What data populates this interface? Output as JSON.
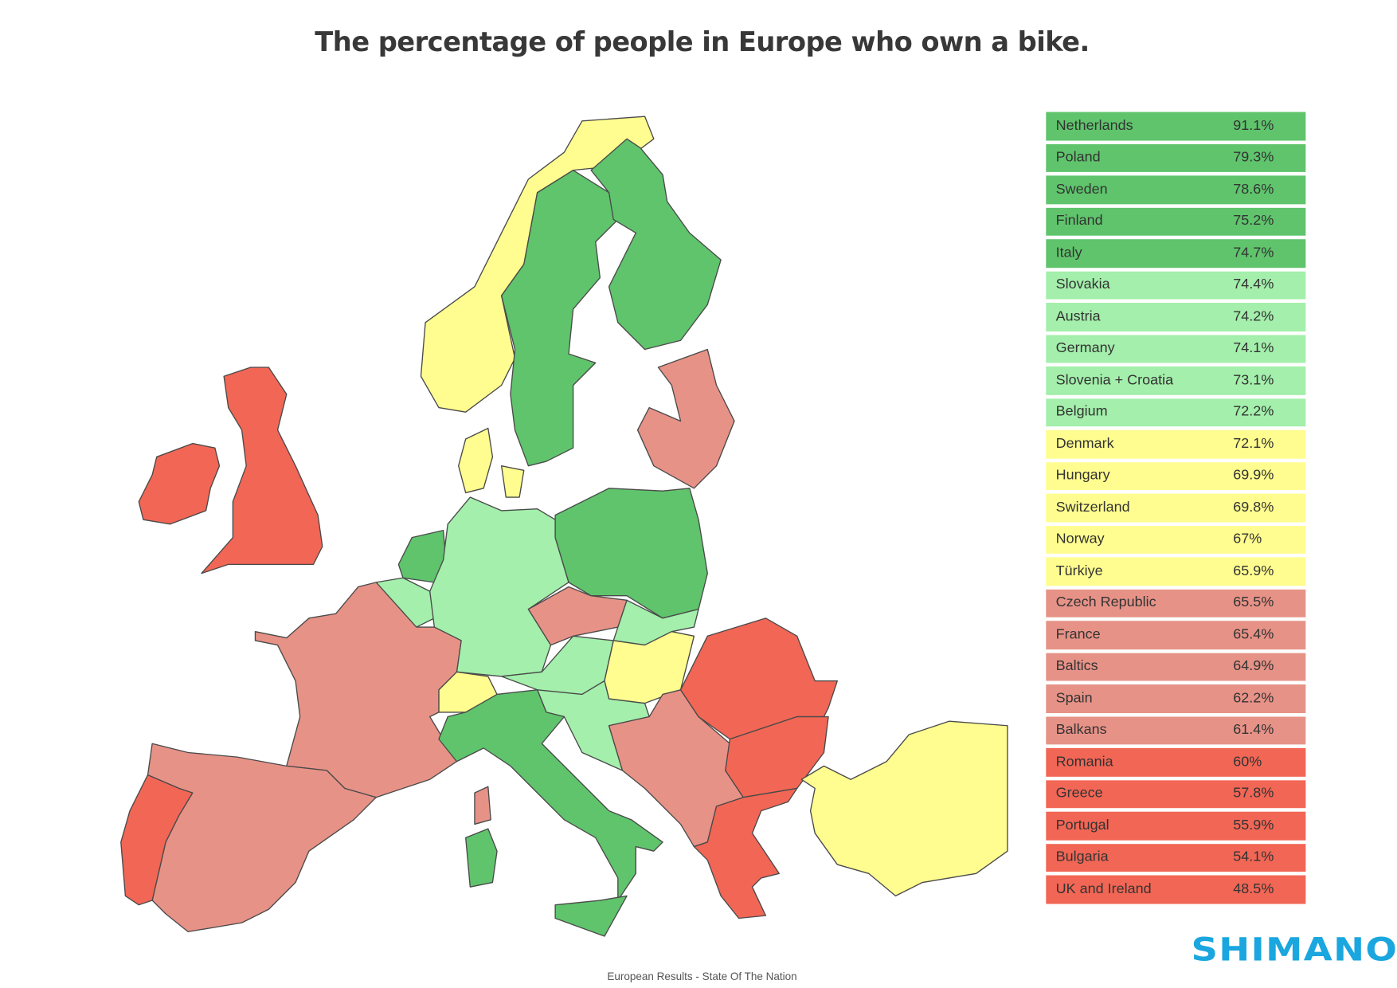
{
  "chart_data": {
    "type": "table",
    "title": "The percentage of people in Europe who own a bike.",
    "subtitle": "European Results - State Of The Nation",
    "color_scale": {
      "top": "#5fc46c",
      "high": "#a3efab",
      "mid": "#fffd8f",
      "low": "#e79287",
      "lowest": "#f26655"
    },
    "rows": [
      {
        "country": "Netherlands",
        "value": "91.1%",
        "band": "top"
      },
      {
        "country": "Poland",
        "value": "79.3%",
        "band": "top"
      },
      {
        "country": "Sweden",
        "value": "78.6%",
        "band": "top"
      },
      {
        "country": "Finland",
        "value": "75.2%",
        "band": "top"
      },
      {
        "country": "Italy",
        "value": "74.7%",
        "band": "top"
      },
      {
        "country": "Slovakia",
        "value": "74.4%",
        "band": "high"
      },
      {
        "country": "Austria",
        "value": "74.2%",
        "band": "high"
      },
      {
        "country": "Germany",
        "value": "74.1%",
        "band": "high"
      },
      {
        "country": "Slovenia + Croatia",
        "value": "73.1%",
        "band": "high"
      },
      {
        "country": "Belgium",
        "value": "72.2%",
        "band": "high"
      },
      {
        "country": "Denmark",
        "value": "72.1%",
        "band": "mid"
      },
      {
        "country": "Hungary",
        "value": "69.9%",
        "band": "mid"
      },
      {
        "country": "Switzerland",
        "value": "69.8%",
        "band": "mid"
      },
      {
        "country": "Norway",
        "value": "67%",
        "band": "mid"
      },
      {
        "country": "Türkiye",
        "value": "65.9%",
        "band": "mid"
      },
      {
        "country": "Czech Republic",
        "value": "65.5%",
        "band": "low"
      },
      {
        "country": "France",
        "value": "65.4%",
        "band": "low"
      },
      {
        "country": "Baltics",
        "value": "64.9%",
        "band": "low"
      },
      {
        "country": "Spain",
        "value": "62.2%",
        "band": "low"
      },
      {
        "country": "Balkans",
        "value": "61.4%",
        "band": "low"
      },
      {
        "country": "Romania",
        "value": "60%",
        "band": "lowest"
      },
      {
        "country": "Greece",
        "value": "57.8%",
        "band": "lowest"
      },
      {
        "country": "Portugal",
        "value": "55.9%",
        "band": "lowest"
      },
      {
        "country": "Bulgaria",
        "value": "54.1%",
        "band": "lowest"
      },
      {
        "country": "UK and Ireland",
        "value": "48.5%",
        "band": "lowest"
      }
    ]
  },
  "logo": "SHIMANO"
}
